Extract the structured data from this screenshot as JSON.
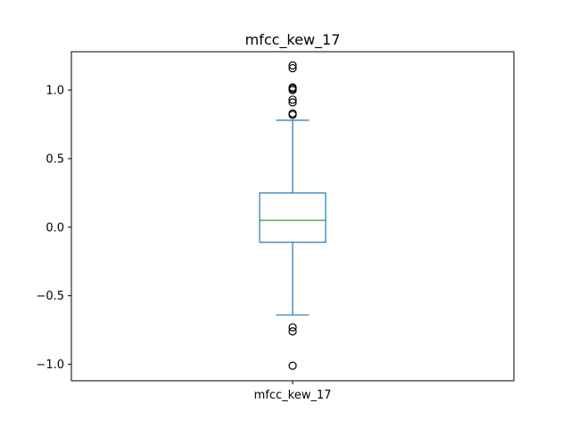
{
  "chart_data": {
    "type": "box",
    "title": "mfcc_kew_17",
    "categories": [
      "mfcc_kew_17"
    ],
    "boxes": [
      {
        "name": "mfcc_kew_17",
        "whisker_low": -0.64,
        "q1": -0.11,
        "median": 0.05,
        "q3": 0.25,
        "whisker_high": 0.78,
        "outliers": [
          1.18,
          1.16,
          1.02,
          1.01,
          1.0,
          0.93,
          0.91,
          0.83,
          0.82,
          -0.73,
          -0.76,
          -1.01
        ]
      }
    ],
    "ylim": [
      -1.12,
      1.28
    ],
    "yticks": [
      -1.0,
      -0.5,
      0.0,
      0.5,
      1.0
    ],
    "ytick_labels": [
      "−1.0",
      "−0.5",
      "0.0",
      "0.5",
      "1.0"
    ],
    "grid": false,
    "colors": {
      "box": "#1f77b4",
      "median": "#2ca02c",
      "outlier": "#000000"
    }
  }
}
